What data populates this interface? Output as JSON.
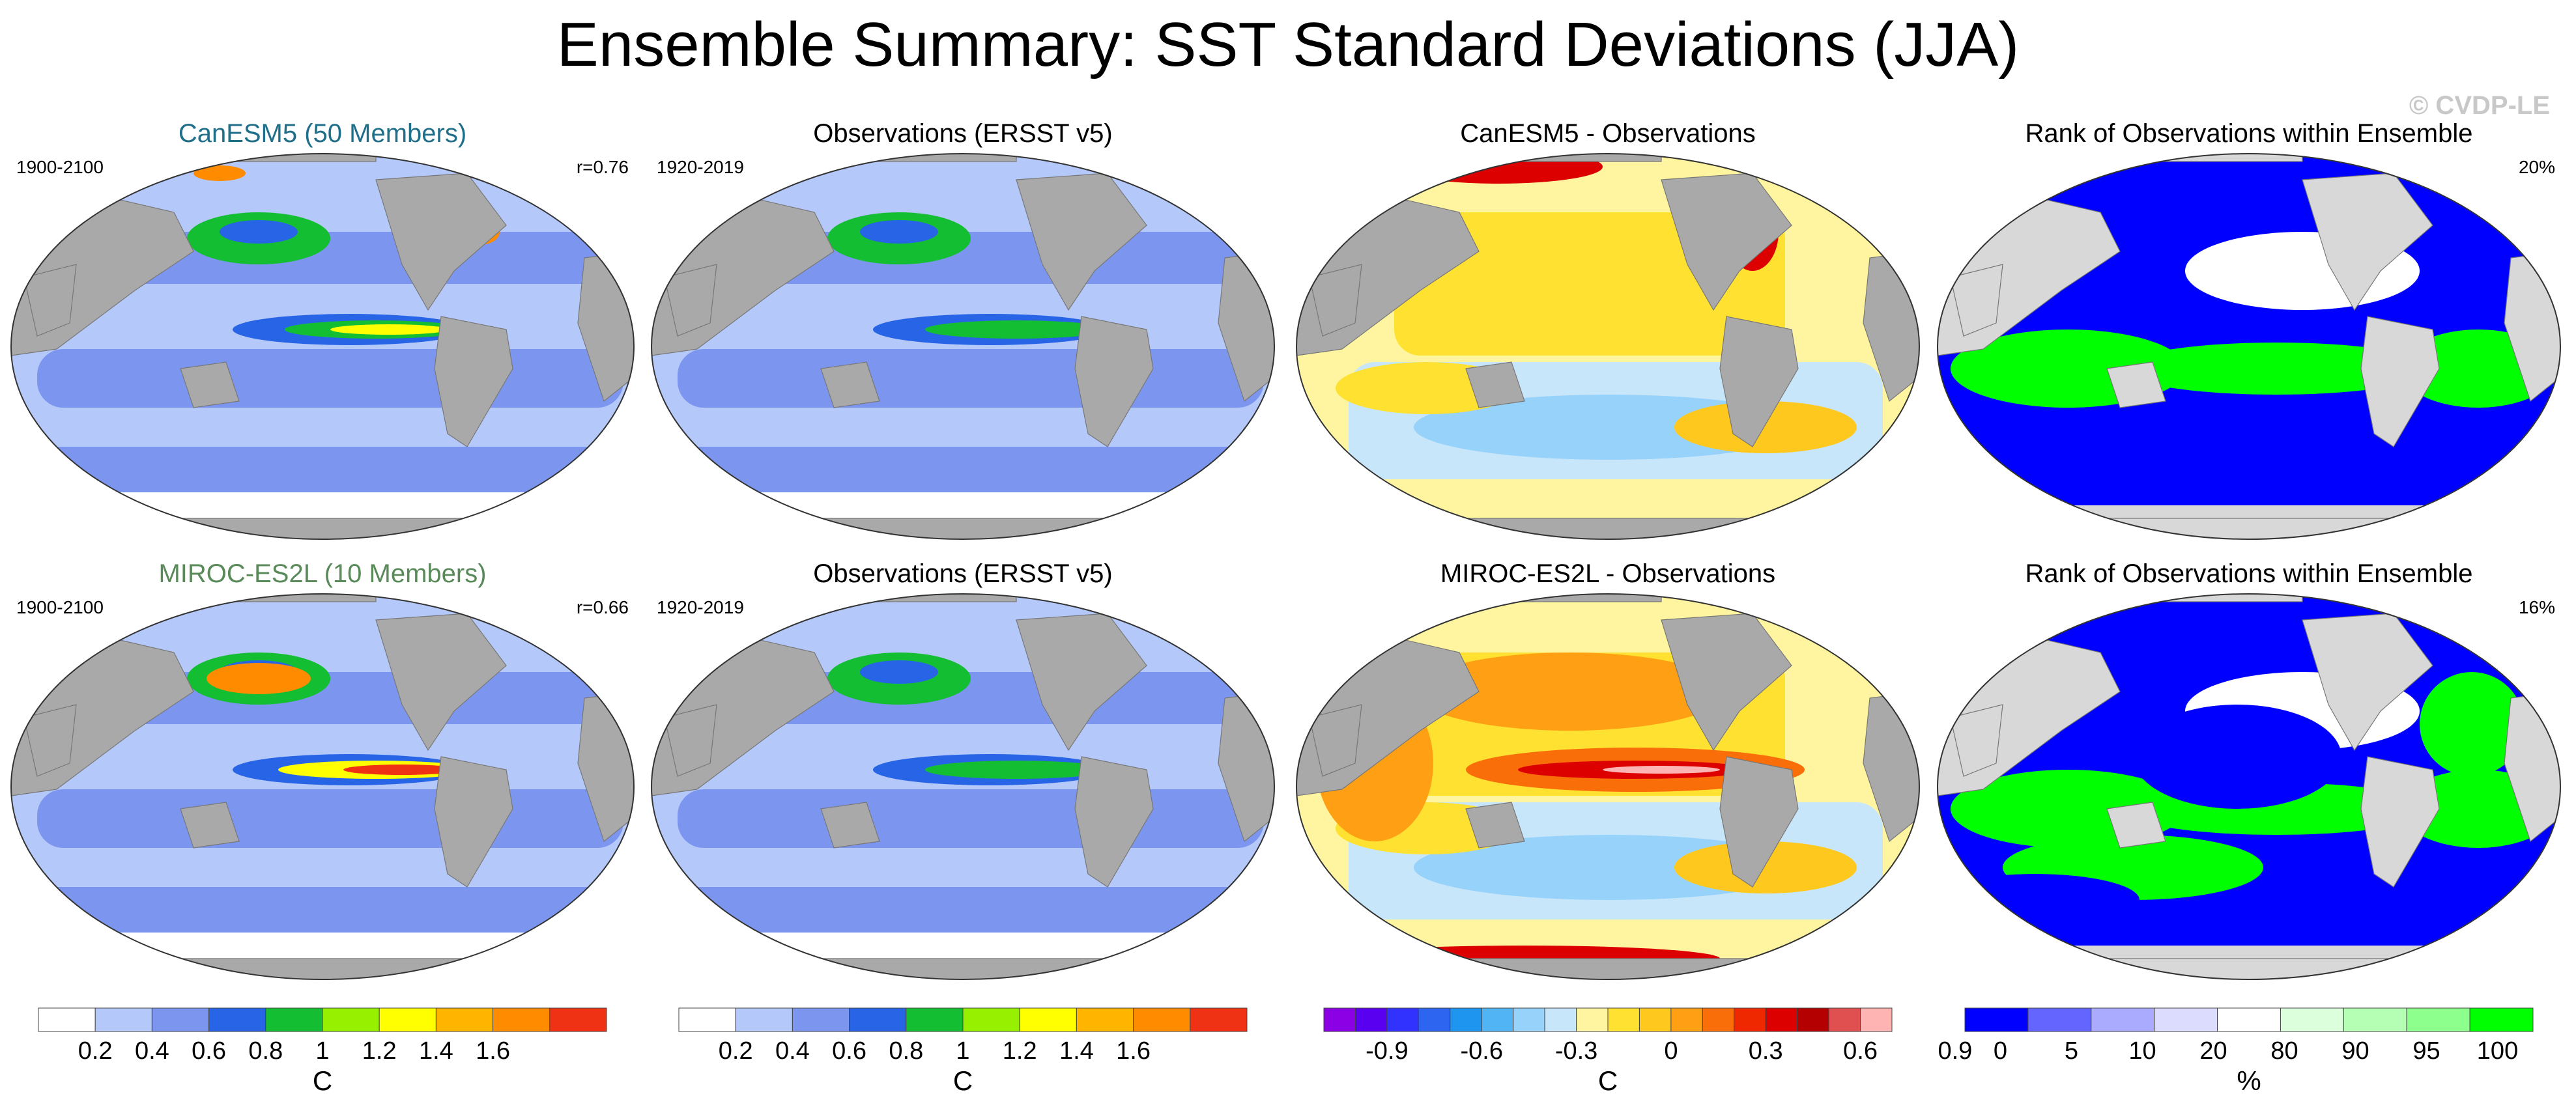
{
  "title": "Ensemble Summary: SST Standard Deviations (JJA)",
  "copyright": "© CVDP-LE",
  "colors": {
    "land": "#a9a9a9",
    "rank_land": "#d8d8d8",
    "sd_levels": [
      "#ffffff",
      "#b4c8fa",
      "#7c96f0",
      "#2864e6",
      "#14be32",
      "#96f000",
      "#ffff00",
      "#ffb400",
      "#ff8c00",
      "#f03214"
    ],
    "diff_levels": [
      "#8c00e6",
      "#5a00f0",
      "#3232ff",
      "#2d64f0",
      "#1e96f0",
      "#50b4f5",
      "#96d2fa",
      "#c8e6fa",
      "#fff5a0",
      "#ffe132",
      "#ffc81e",
      "#ffa014",
      "#fa6e0a",
      "#f02800",
      "#dc0000",
      "#b40000",
      "#e05050",
      "#ffb4b4"
    ],
    "rank_levels": [
      "#0000ff",
      "#6464ff",
      "#aaaaff",
      "#dcdcff",
      "#ffffff",
      "#dcffdc",
      "#b4ffb4",
      "#8cff8c",
      "#00ff00"
    ]
  },
  "chart_data": [
    {
      "type": "heatmap",
      "panel": "canesm5-sd",
      "title": "CanESM5 (50 Members)",
      "title_color": "#1f6f8b",
      "left_label": "1900-2100",
      "right_label": "r=0.76",
      "colorbar": "sd"
    },
    {
      "type": "heatmap",
      "panel": "obs-sd-1",
      "title": "Observations (ERSST v5)",
      "left_label": "1920-2019",
      "right_label": "",
      "colorbar": "sd"
    },
    {
      "type": "heatmap",
      "panel": "canesm5-diff",
      "title": "CanESM5 - Observations",
      "left_label": "",
      "right_label": "",
      "colorbar": "diff"
    },
    {
      "type": "heatmap",
      "panel": "canesm5-rank",
      "title": "Rank of Observations within Ensemble",
      "left_label": "",
      "right_label": "20%",
      "colorbar": "rank"
    },
    {
      "type": "heatmap",
      "panel": "miroc-sd",
      "title": "MIROC-ES2L (10 Members)",
      "title_color": "#5a8a5a",
      "left_label": "1900-2100",
      "right_label": "r=0.66",
      "colorbar": "sd"
    },
    {
      "type": "heatmap",
      "panel": "obs-sd-2",
      "title": "Observations (ERSST v5)",
      "left_label": "1920-2019",
      "right_label": "",
      "colorbar": "sd"
    },
    {
      "type": "heatmap",
      "panel": "miroc-diff",
      "title": "MIROC-ES2L - Observations",
      "left_label": "",
      "right_label": "",
      "colorbar": "diff"
    },
    {
      "type": "heatmap",
      "panel": "miroc-rank",
      "title": "Rank of Observations within Ensemble",
      "left_label": "",
      "right_label": "16%",
      "colorbar": "rank"
    }
  ],
  "colorbars": {
    "sd": {
      "unit": "C",
      "ticks": [
        "0.2",
        "0.4",
        "0.6",
        "0.8",
        "1",
        "1.2",
        "1.4",
        "1.6"
      ]
    },
    "diff": {
      "unit": "C",
      "ticks": [
        "-0.9",
        "-0.6",
        "-0.3",
        "0",
        "0.3",
        "0.6",
        "0.9"
      ]
    },
    "rank": {
      "unit": "%",
      "ticks": [
        "0",
        "5",
        "10",
        "20",
        "80",
        "90",
        "95",
        "100"
      ]
    }
  }
}
